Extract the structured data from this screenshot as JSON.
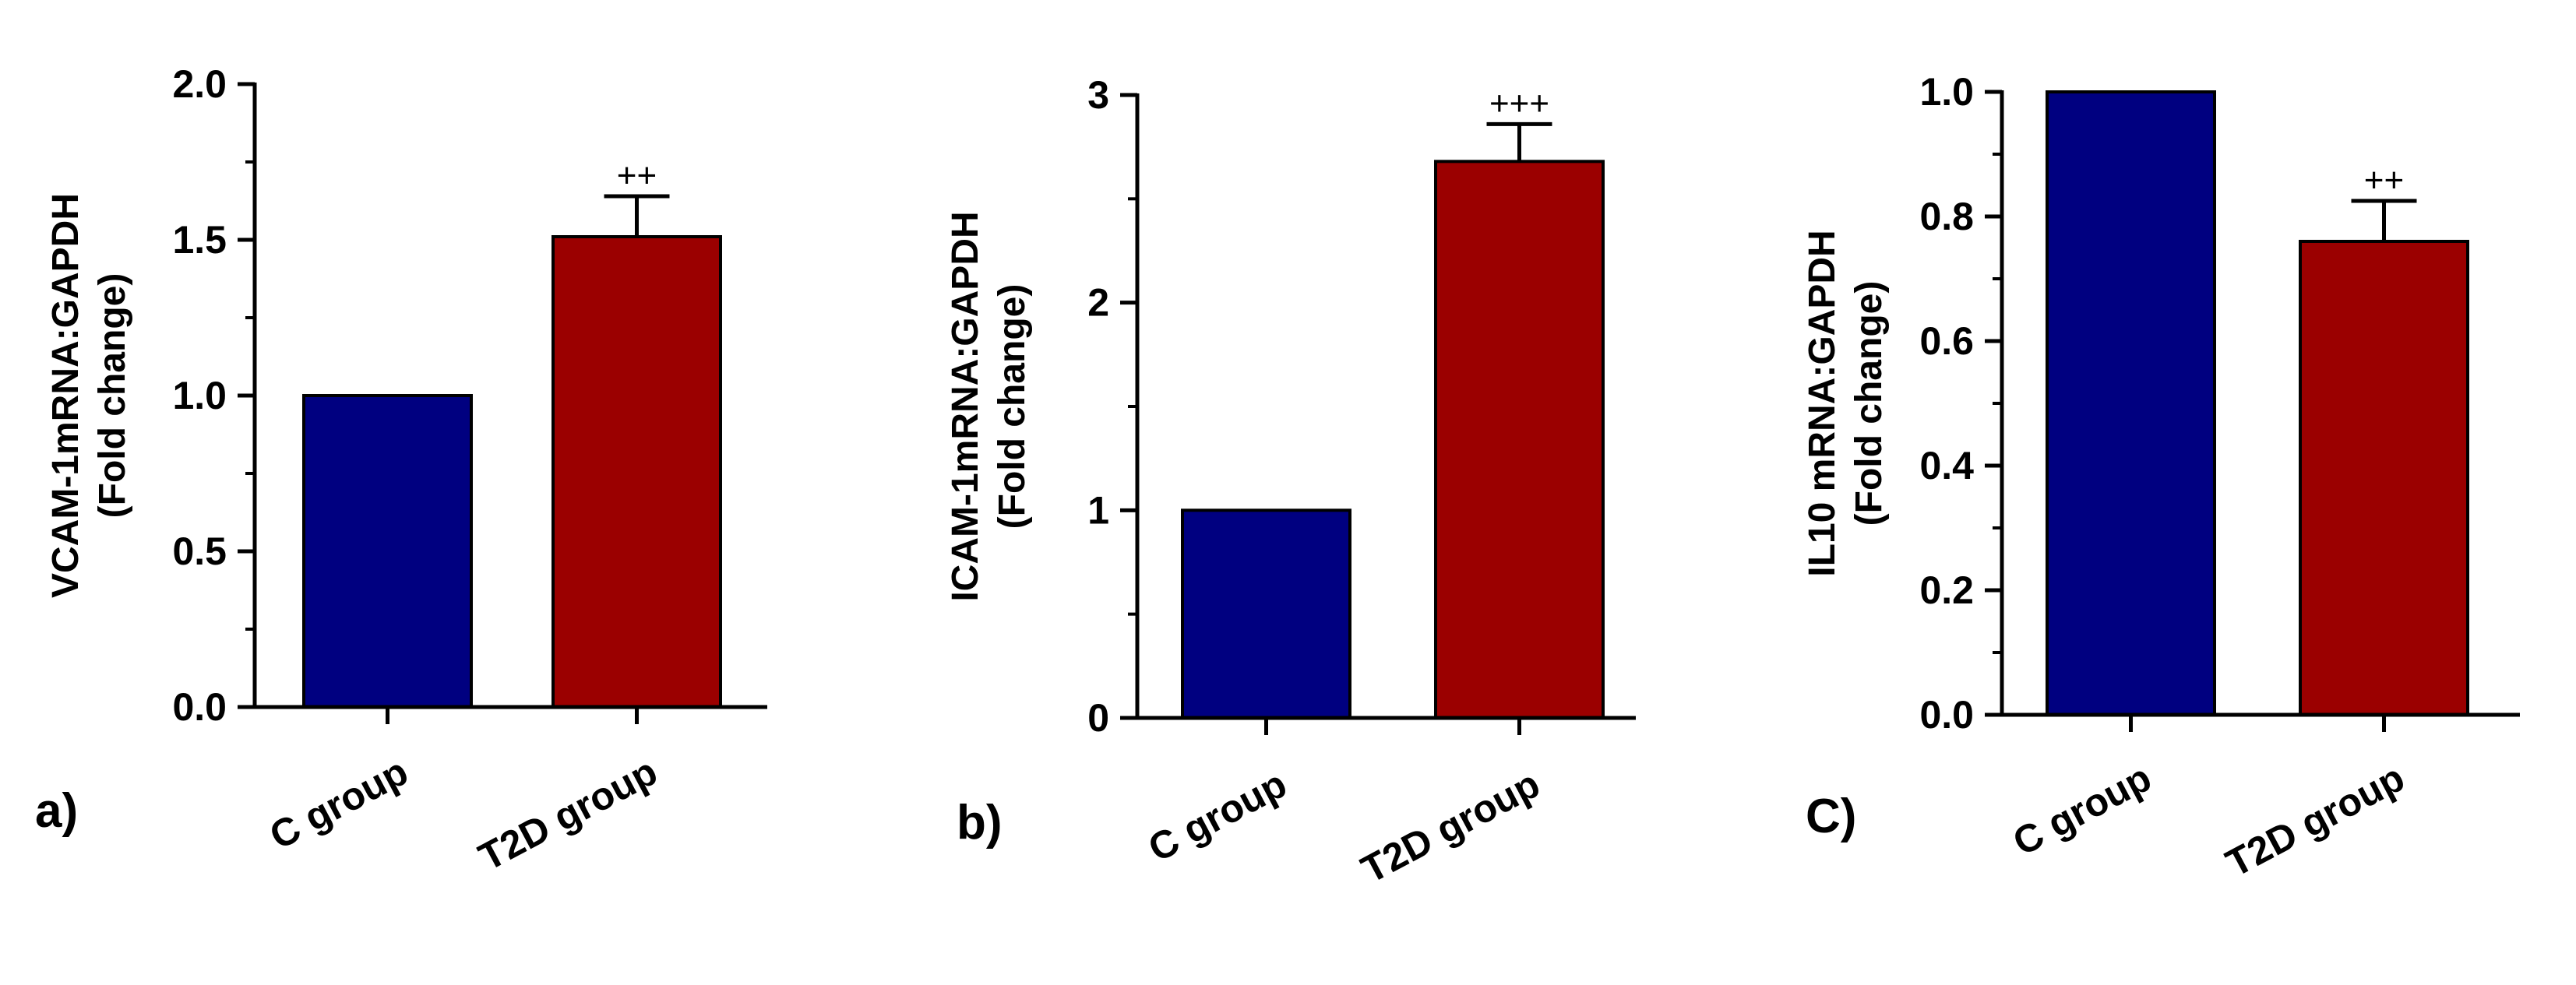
{
  "figure": {
    "panels": [
      {
        "panel_label": "a)"
      },
      {
        "panel_label": "b)"
      },
      {
        "panel_label": "C)"
      }
    ]
  },
  "chart_data": [
    {
      "type": "bar",
      "categories": [
        "C group",
        "T2D group"
      ],
      "values": [
        1.0,
        1.51
      ],
      "errors": [
        0,
        0.13
      ],
      "significance": [
        "",
        "++"
      ],
      "colors": [
        "#000080",
        "#9B0000"
      ],
      "ylabel": "VCAM-1mRNA:GAPDH",
      "ylabel2": "(Fold change)",
      "ylim": [
        0,
        2.0
      ],
      "yticks": [
        "0.0",
        "0.5",
        "1.0",
        "1.5",
        "2.0"
      ],
      "grid": false,
      "legend": "none"
    },
    {
      "type": "bar",
      "categories": [
        "C group",
        "T2D group"
      ],
      "values": [
        1.0,
        2.68
      ],
      "errors": [
        0,
        0.18
      ],
      "significance": [
        "",
        "+++"
      ],
      "colors": [
        "#000080",
        "#9B0000"
      ],
      "ylabel": "ICAM-1mRNA:GAPDH",
      "ylabel2": "(Fold change)",
      "ylim": [
        0,
        3
      ],
      "yticks": [
        "0",
        "1",
        "2",
        "3"
      ],
      "grid": false,
      "legend": "none"
    },
    {
      "type": "bar",
      "categories": [
        "C group",
        "T2D group"
      ],
      "values": [
        1.0,
        0.76
      ],
      "errors": [
        0,
        0.065
      ],
      "significance": [
        "",
        "++"
      ],
      "colors": [
        "#000080",
        "#9B0000"
      ],
      "ylabel": "IL10 mRNA:GAPDH",
      "ylabel2": "(Fold change)",
      "ylim": [
        0,
        1.0
      ],
      "yticks": [
        "0.0",
        "0.2",
        "0.4",
        "0.6",
        "0.8",
        "1.0"
      ],
      "grid": false,
      "legend": "none"
    }
  ]
}
